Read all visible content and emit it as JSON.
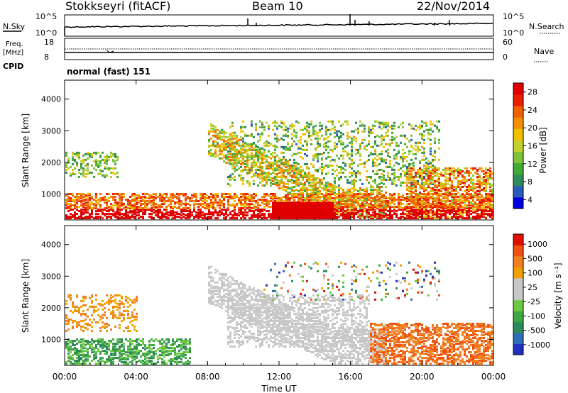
{
  "header": {
    "title": "Stokkseyri (fitACF)",
    "beam": "Beam 10",
    "date": "22/Nov/2014",
    "mode": "normal (fast) 151"
  },
  "side_labels": {
    "nsky": "N.Sky",
    "nsearch": "N.Search",
    "freq": "Freq.",
    "freq_unit": "[MHz]",
    "cpid": "CPID",
    "nave": "Nave"
  },
  "chart_data": [
    {
      "type": "line",
      "name": "noise-panel",
      "left_ticks": [
        "10^5",
        "10^0"
      ],
      "right_ticks": [
        "10^5",
        "10^0"
      ],
      "series": [
        {
          "name": "N.Sky"
        },
        {
          "name": "N.Search"
        }
      ],
      "xlim": [
        "00:00",
        "24:00"
      ]
    },
    {
      "type": "line",
      "name": "frequency-nave-panel",
      "left_ticks": [
        "18",
        "8"
      ],
      "right_ticks": [
        "60",
        "0"
      ],
      "series": [
        {
          "name": "Freq."
        },
        {
          "name": "Nave"
        }
      ]
    },
    {
      "type": "heatmap",
      "name": "power-panel",
      "ylabel": "Slant Range [km]",
      "yticks": [
        "4000",
        "3000",
        "2000",
        "1000"
      ],
      "colorbar": {
        "label": "Power [dB]",
        "ticks": [
          "28",
          "24",
          "20",
          "16",
          "12",
          "8",
          "4"
        ],
        "colors": [
          "#0000dd",
          "#2a5cb8",
          "#2e8a58",
          "#44a836",
          "#7ec23a",
          "#c4d02e",
          "#f0c000",
          "#f09000",
          "#f06000",
          "#e82000",
          "#e00000"
        ]
      },
      "ylim": [
        180,
        4600
      ]
    },
    {
      "type": "heatmap",
      "name": "velocity-panel",
      "ylabel": "Slant Range [km]",
      "yticks": [
        "4000",
        "3000",
        "2000",
        "1000"
      ],
      "xticks": [
        "00:00",
        "04:00",
        "08:00",
        "12:00",
        "16:00",
        "20:00",
        "00:00"
      ],
      "xlabel": "Time UT",
      "colorbar": {
        "label": "Velocity [m s⁻¹]",
        "ticks": [
          "1000",
          "500",
          "100",
          "25",
          "-25",
          "-100",
          "-500",
          "-1000"
        ],
        "colors": [
          "#2030c0",
          "#2e6db8",
          "#2e8a58",
          "#3fa844",
          "#6cc83e",
          "#c8c8c8",
          "#c8c8c8",
          "#f0a000",
          "#f08020",
          "#f05010",
          "#e01000"
        ]
      },
      "ylim": [
        180,
        4600
      ]
    }
  ]
}
